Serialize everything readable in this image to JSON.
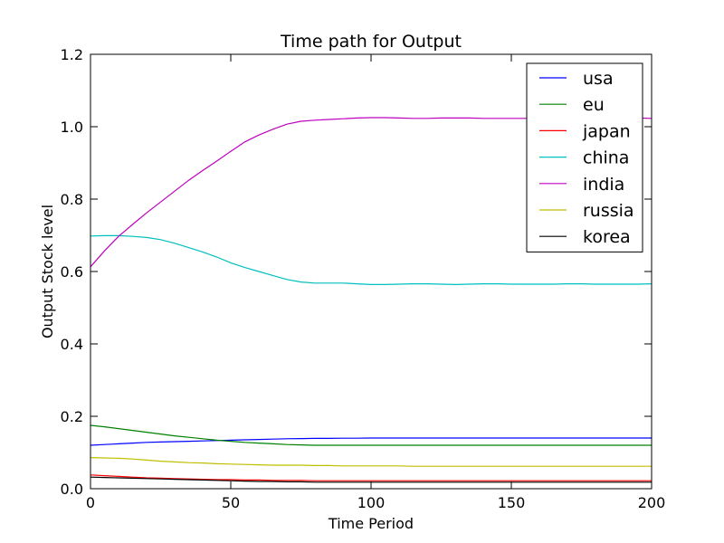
{
  "chart_data": {
    "type": "line",
    "title": "Time path for Output",
    "xlabel": "Time Period",
    "ylabel": "Output Stock level",
    "xlim": [
      0,
      200
    ],
    "ylim": [
      0.0,
      1.2
    ],
    "xticks": [
      "0",
      "50",
      "100",
      "150",
      "200"
    ],
    "yticks": [
      "0.0",
      "0.2",
      "0.4",
      "0.6",
      "0.8",
      "1.0",
      "1.2"
    ],
    "grid": false,
    "legend_position": "top-right",
    "x": [
      0,
      5,
      10,
      15,
      20,
      25,
      30,
      35,
      40,
      45,
      50,
      55,
      60,
      65,
      70,
      75,
      80,
      85,
      90,
      95,
      100,
      105,
      110,
      115,
      120,
      125,
      130,
      135,
      140,
      145,
      150,
      155,
      160,
      165,
      170,
      175,
      180,
      185,
      190,
      195,
      200
    ],
    "series": [
      {
        "name": "usa",
        "color": "#0000ff",
        "values": [
          0.12,
          0.122,
          0.124,
          0.126,
          0.128,
          0.129,
          0.13,
          0.131,
          0.132,
          0.133,
          0.134,
          0.135,
          0.136,
          0.137,
          0.138,
          0.1385,
          0.139,
          0.139,
          0.1395,
          0.1395,
          0.14,
          0.14,
          0.14,
          0.14,
          0.14,
          0.14,
          0.14,
          0.14,
          0.14,
          0.14,
          0.14,
          0.14,
          0.14,
          0.14,
          0.14,
          0.14,
          0.14,
          0.14,
          0.14,
          0.14,
          0.14
        ]
      },
      {
        "name": "eu",
        "color": "#008000",
        "values": [
          0.175,
          0.171,
          0.166,
          0.161,
          0.156,
          0.151,
          0.146,
          0.142,
          0.138,
          0.134,
          0.131,
          0.128,
          0.126,
          0.124,
          0.122,
          0.121,
          0.12,
          0.12,
          0.12,
          0.12,
          0.12,
          0.12,
          0.12,
          0.12,
          0.12,
          0.12,
          0.12,
          0.12,
          0.12,
          0.12,
          0.12,
          0.12,
          0.12,
          0.12,
          0.12,
          0.12,
          0.12,
          0.12,
          0.12,
          0.12,
          0.12
        ]
      },
      {
        "name": "japan",
        "color": "#ff0000",
        "values": [
          0.038,
          0.036,
          0.034,
          0.032,
          0.03,
          0.029,
          0.028,
          0.027,
          0.026,
          0.025,
          0.025,
          0.024,
          0.024,
          0.023,
          0.023,
          0.023,
          0.022,
          0.022,
          0.022,
          0.022,
          0.022,
          0.022,
          0.022,
          0.022,
          0.022,
          0.022,
          0.022,
          0.022,
          0.022,
          0.022,
          0.022,
          0.022,
          0.022,
          0.022,
          0.022,
          0.022,
          0.022,
          0.022,
          0.022,
          0.022,
          0.022
        ]
      },
      {
        "name": "china",
        "color": "#00bfbf",
        "values": [
          0.698,
          0.699,
          0.699,
          0.697,
          0.694,
          0.688,
          0.678,
          0.666,
          0.654,
          0.64,
          0.624,
          0.611,
          0.6,
          0.589,
          0.578,
          0.571,
          0.568,
          0.568,
          0.568,
          0.566,
          0.564,
          0.564,
          0.565,
          0.566,
          0.566,
          0.565,
          0.564,
          0.565,
          0.566,
          0.566,
          0.565,
          0.565,
          0.565,
          0.565,
          0.566,
          0.566,
          0.565,
          0.565,
          0.565,
          0.565,
          0.566
        ]
      },
      {
        "name": "india",
        "color": "#bf00bf",
        "values": [
          0.613,
          0.657,
          0.697,
          0.73,
          0.762,
          0.792,
          0.822,
          0.852,
          0.879,
          0.905,
          0.932,
          0.958,
          0.977,
          0.993,
          1.007,
          1.015,
          1.018,
          1.02,
          1.022,
          1.024,
          1.025,
          1.025,
          1.024,
          1.023,
          1.023,
          1.024,
          1.024,
          1.024,
          1.023,
          1.023,
          1.023,
          1.023,
          1.023,
          1.024,
          1.024,
          1.024,
          1.024,
          1.024,
          1.024,
          1.024,
          1.023
        ]
      },
      {
        "name": "russia",
        "color": "#bfbf00",
        "values": [
          0.086,
          0.085,
          0.084,
          0.082,
          0.079,
          0.076,
          0.074,
          0.072,
          0.071,
          0.069,
          0.068,
          0.067,
          0.066,
          0.065,
          0.065,
          0.065,
          0.064,
          0.064,
          0.063,
          0.063,
          0.063,
          0.063,
          0.063,
          0.062,
          0.062,
          0.062,
          0.062,
          0.062,
          0.062,
          0.062,
          0.062,
          0.062,
          0.062,
          0.062,
          0.062,
          0.062,
          0.062,
          0.062,
          0.062,
          0.062,
          0.062
        ]
      },
      {
        "name": "korea",
        "color": "#000000",
        "values": [
          0.032,
          0.031,
          0.03,
          0.029,
          0.028,
          0.027,
          0.026,
          0.025,
          0.024,
          0.023,
          0.022,
          0.021,
          0.02,
          0.02,
          0.019,
          0.019,
          0.018,
          0.018,
          0.018,
          0.018,
          0.018,
          0.018,
          0.018,
          0.018,
          0.018,
          0.018,
          0.018,
          0.018,
          0.018,
          0.018,
          0.018,
          0.018,
          0.018,
          0.018,
          0.018,
          0.018,
          0.018,
          0.018,
          0.018,
          0.018,
          0.018
        ]
      }
    ]
  }
}
